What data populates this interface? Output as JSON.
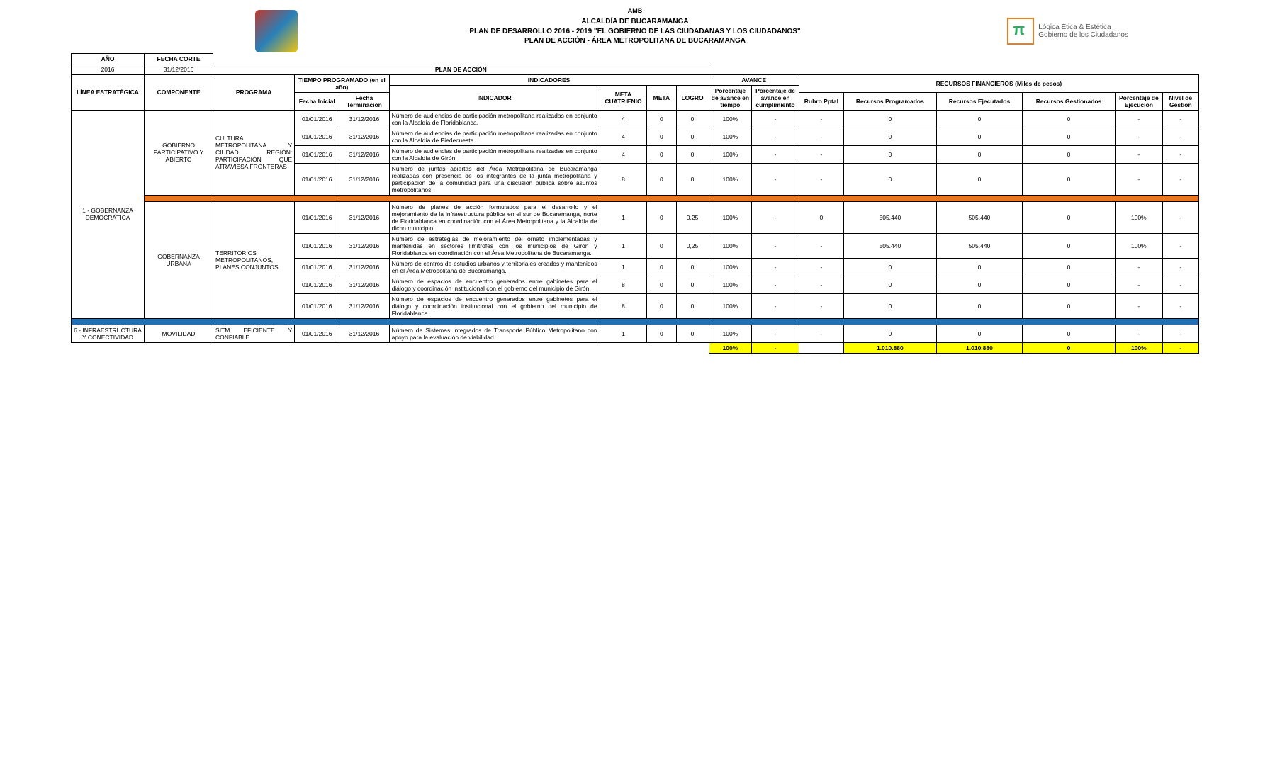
{
  "header": {
    "amb": "AMB",
    "l1": "ALCALDÍA DE BUCARAMANGA",
    "l2": "PLAN DE DESARROLLO 2016 - 2019 \"EL GOBIERNO DE LAS CIUDADANAS Y LOS CIUDADANOS\"",
    "l3": "PLAN DE ACCIÓN - ÁREA METROPOLITANA DE BUCARAMANGA",
    "slogan1": "Lógica Ética & Estética",
    "slogan2": "Gobierno de los Ciudadanos"
  },
  "topcells": {
    "ano_h": "AÑO",
    "ano_v": "2016",
    "fc_h": "FECHA CORTE",
    "fc_v": "31/12/2016",
    "plan_h": "PLAN DE ACCIÓN"
  },
  "cols": {
    "linea": "LÍNEA ESTRATÉGICA",
    "comp": "COMPONENTE",
    "prog": "PROGRAMA",
    "tprog": "TIEMPO PROGRAMADO (en el año)",
    "indics": "INDICADORES",
    "avance": "AVANCE",
    "recfin": "RECURSOS FINANCIEROS (Miles de pesos)",
    "fi": "Fecha Inicial",
    "ft": "Fecha Terminación",
    "ind": "INDICADOR",
    "metac": "META CUATRIENIO",
    "meta": "META",
    "logro": "LOGRO",
    "pav": "Porcentaje de avance en tiempo",
    "pac": "Porcentaje de avance en cumplimiento",
    "rp": "Rubro Pptal",
    "rprog": "Recursos Programados",
    "rej": "Recursos Ejecutados",
    "rges": "Recursos Gestionados",
    "pej": "Porcentaje de Ejecución",
    "ng": "Nivel de Gestión"
  },
  "groups": {
    "linea1": "1 - GOBERNANZA DEMOCRÁTICA",
    "comp1": "GOBIERNO PARTICIPATIVO Y ABIERTO",
    "prog1": "CULTURA METROPOLITANA Y CIUDAD REGIÓN: PARTICIPACIÓN QUE ATRAVIESA FRONTERAS",
    "comp2": "GOBERNANZA URBANA",
    "prog2": "TERRITORIOS METROPOLITANOS, PLANES CONJUNTOS",
    "linea2": "6 - INFRAESTRUCTURA Y CONECTIVIDAD",
    "comp3": "MOVILIDAD",
    "prog3": "SITM EFICIENTE Y CONFIABLE"
  },
  "rows": [
    {
      "fi": "01/01/2016",
      "ft": "31/12/2016",
      "ind": "Número de audiencias de participación metropolitana realizadas en conjunto con la Alcaldía de Floridablanca.",
      "mc": "4",
      "m": "0",
      "l": "0",
      "pav": "100%",
      "pac": "-",
      "rp": "-",
      "rprog": "0",
      "rej": "0",
      "rges": "0",
      "pej": "-",
      "ng": "-"
    },
    {
      "fi": "01/01/2016",
      "ft": "31/12/2016",
      "ind": "Número de audiencias de participación metropolitana realizadas en conjunto con la Alcaldía de Piedecuesta.",
      "mc": "4",
      "m": "0",
      "l": "0",
      "pav": "100%",
      "pac": "-",
      "rp": "-",
      "rprog": "0",
      "rej": "0",
      "rges": "0",
      "pej": "-",
      "ng": "-"
    },
    {
      "fi": "01/01/2016",
      "ft": "31/12/2016",
      "ind": "Número de audiencias de participación metropolitana realizadas en conjunto con la Alcaldía de Girón.",
      "mc": "4",
      "m": "0",
      "l": "0",
      "pav": "100%",
      "pac": "-",
      "rp": "-",
      "rprog": "0",
      "rej": "0",
      "rges": "0",
      "pej": "-",
      "ng": "-"
    },
    {
      "fi": "01/01/2016",
      "ft": "31/12/2016",
      "ind": "Número de juntas abiertas del Área Metropolitana de Bucaramanga realizadas con presencia de los integrantes de la junta metropolitana y participación de la comunidad para una discusión pública sobre asuntos metropolitanos.",
      "mc": "8",
      "m": "0",
      "l": "0",
      "pav": "100%",
      "pac": "-",
      "rp": "-",
      "rprog": "0",
      "rej": "0",
      "rges": "0",
      "pej": "-",
      "ng": "-"
    },
    {
      "fi": "01/01/2016",
      "ft": "31/12/2016",
      "ind": "Número de planes de acción formulados para el desarrollo y el mejoramiento de la infraestructura pública en el sur de Bucaramanga, norte de Floridablanca en coordinación con el Área Metropolitana y la Alcaldía de dicho municipio.",
      "mc": "1",
      "m": "0",
      "l": "0,25",
      "pav": "100%",
      "pac": "-",
      "rp": "0",
      "rprog": "505.440",
      "rej": "505.440",
      "rges": "0",
      "pej": "100%",
      "ng": "-"
    },
    {
      "fi": "01/01/2016",
      "ft": "31/12/2016",
      "ind": "Número de estrategias de mejoramiento del ornato implementadas y mantenidas en sectores limítrofes con los municipios de Girón y Floridablanca en coordinación con el Área Metropolitana de Bucaramanga.",
      "mc": "1",
      "m": "0",
      "l": "0,25",
      "pav": "100%",
      "pac": "-",
      "rp": "-",
      "rprog": "505.440",
      "rej": "505.440",
      "rges": "0",
      "pej": "100%",
      "ng": "-"
    },
    {
      "fi": "01/01/2016",
      "ft": "31/12/2016",
      "ind": "Número de centros de estudios urbanos y territoriales creados y mantenidos en el Área Metropolitana de Bucaramanga.",
      "mc": "1",
      "m": "0",
      "l": "0",
      "pav": "100%",
      "pac": "-",
      "rp": "-",
      "rprog": "0",
      "rej": "0",
      "rges": "0",
      "pej": "-",
      "ng": "-"
    },
    {
      "fi": "01/01/2016",
      "ft": "31/12/2016",
      "ind": "Número de espacios de encuentro generados entre gabinetes para el diálogo y coordinación institucional con el gobierno del municipio de Girón.",
      "mc": "8",
      "m": "0",
      "l": "0",
      "pav": "100%",
      "pac": "-",
      "rp": "-",
      "rprog": "0",
      "rej": "0",
      "rges": "0",
      "pej": "-",
      "ng": "-"
    },
    {
      "fi": "01/01/2016",
      "ft": "31/12/2016",
      "ind": "Número de espacios de encuentro generados entre gabinetes para el diálogo y coordinación institucional con el gobierno del municipio de Floridablanca.",
      "mc": "8",
      "m": "0",
      "l": "0",
      "pav": "100%",
      "pac": "-",
      "rp": "-",
      "rprog": "0",
      "rej": "0",
      "rges": "0",
      "pej": "-",
      "ng": "-"
    },
    {
      "fi": "01/01/2016",
      "ft": "31/12/2016",
      "ind": "Número de Sistemas Integrados de Transporte Público Metropolitano con apoyo para la evaluación de viabilidad.",
      "mc": "1",
      "m": "0",
      "l": "0",
      "pav": "100%",
      "pac": "-",
      "rp": "-",
      "rprog": "0",
      "rej": "0",
      "rges": "0",
      "pej": "-",
      "ng": "-"
    }
  ],
  "totals": {
    "pav": "100%",
    "pac": "-",
    "rprog": "1.010.880",
    "rej": "1.010.880",
    "rges": "0",
    "pej": "100%",
    "ng": "-"
  }
}
